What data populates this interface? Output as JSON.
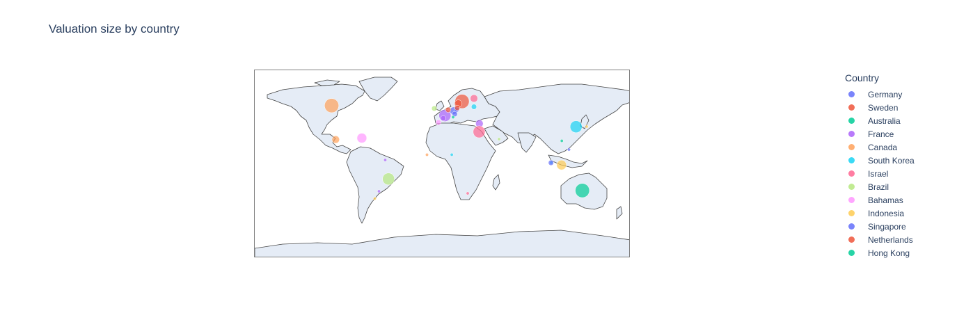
{
  "title": "Valuation size by country",
  "map": {
    "projection": "equirectangular",
    "land_color": "#e5ecf6",
    "coastline_color": "#444444",
    "frame_color": "#7f7f7f"
  },
  "legend": {
    "title": "Country",
    "items": [
      {
        "label": "Germany",
        "color": "#636efa"
      },
      {
        "label": "Sweden",
        "color": "#EF553B"
      },
      {
        "label": "Australia",
        "color": "#00cc96"
      },
      {
        "label": "France",
        "color": "#ab63fa"
      },
      {
        "label": "Canada",
        "color": "#FFA15A"
      },
      {
        "label": "South Korea",
        "color": "#19d3f3"
      },
      {
        "label": "Israel",
        "color": "#FF6692"
      },
      {
        "label": "Brazil",
        "color": "#B6E880"
      },
      {
        "label": "Bahamas",
        "color": "#FF97FF"
      },
      {
        "label": "Indonesia",
        "color": "#FECB52"
      },
      {
        "label": "Singapore",
        "color": "#636efa"
      },
      {
        "label": "Netherlands",
        "color": "#EF553B"
      },
      {
        "label": "Hong Kong",
        "color": "#00cc96"
      }
    ]
  },
  "chart_data": {
    "type": "scatter",
    "series": [
      {
        "name": "Germany",
        "color": "#636efa",
        "points": [
          {
            "lon": 10.4,
            "lat": 51.2,
            "size": 3
          },
          {
            "lon": 13.4,
            "lat": 52.5,
            "size": 2
          },
          {
            "lon": 11.6,
            "lat": 48.1,
            "size": 2
          }
        ]
      },
      {
        "name": "Sweden",
        "color": "#EF553B",
        "points": [
          {
            "lon": 18.6,
            "lat": 60.1,
            "size": 6
          },
          {
            "lon": 15.0,
            "lat": 58.0,
            "size": 3
          }
        ]
      },
      {
        "name": "Australia",
        "color": "#00cc96",
        "points": [
          {
            "lon": 133.8,
            "lat": -25.3,
            "size": 6
          }
        ]
      },
      {
        "name": "France",
        "color": "#ab63fa",
        "points": [
          {
            "lon": 2.2,
            "lat": 46.6,
            "size": 5
          },
          {
            "lon": 0.5,
            "lat": 44.0,
            "size": 2
          },
          {
            "lon": 35.2,
            "lat": 38.9,
            "size": 3
          },
          {
            "lon": -55.0,
            "lat": 4.0,
            "size": 1
          },
          {
            "lon": -61.0,
            "lat": -26.0,
            "size": 1
          }
        ]
      },
      {
        "name": "Canada",
        "color": "#FFA15A",
        "points": [
          {
            "lon": -106.3,
            "lat": 56.1,
            "size": 6
          },
          {
            "lon": -102.5,
            "lat": 23.6,
            "size": 3
          },
          {
            "lon": -15.0,
            "lat": 9.0,
            "size": 1
          }
        ]
      },
      {
        "name": "South Korea",
        "color": "#19d3f3",
        "points": [
          {
            "lon": 127.8,
            "lat": 35.9,
            "size": 5
          },
          {
            "lon": 104.0,
            "lat": 1.4,
            "size": 1
          },
          {
            "lon": 30.0,
            "lat": 55.0,
            "size": 2
          },
          {
            "lon": 8.7,
            "lat": 9.1,
            "size": 1
          }
        ]
      },
      {
        "name": "Israel",
        "color": "#FF6692",
        "points": [
          {
            "lon": 34.9,
            "lat": 31.0,
            "size": 5
          },
          {
            "lon": 30.0,
            "lat": 63.0,
            "size": 3
          },
          {
            "lon": 24.0,
            "lat": -28.0,
            "size": 1
          }
        ]
      },
      {
        "name": "Brazil",
        "color": "#B6E880",
        "points": [
          {
            "lon": -51.9,
            "lat": -14.2,
            "size": 5
          },
          {
            "lon": -8.0,
            "lat": 53.4,
            "size": 2
          },
          {
            "lon": 54.0,
            "lat": 24.0,
            "size": 1
          }
        ]
      },
      {
        "name": "Bahamas",
        "color": "#FF97FF",
        "points": [
          {
            "lon": -77.4,
            "lat": 25.0,
            "size": 4
          },
          {
            "lon": -4.0,
            "lat": 40.0,
            "size": 2
          }
        ]
      },
      {
        "name": "Indonesia",
        "color": "#FECB52",
        "points": [
          {
            "lon": 113.9,
            "lat": -0.8,
            "size": 4
          },
          {
            "lon": 138.0,
            "lat": 36.0,
            "size": 1
          },
          {
            "lon": -65.0,
            "lat": -33.0,
            "size": 1
          }
        ]
      },
      {
        "name": "Singapore",
        "color": "#636efa",
        "points": [
          {
            "lon": 103.8,
            "lat": 1.35,
            "size": 2
          },
          {
            "lon": 121.0,
            "lat": 14.0,
            "size": 1
          }
        ]
      },
      {
        "name": "Netherlands",
        "color": "#EF553B",
        "points": [
          {
            "lon": 5.3,
            "lat": 52.1,
            "size": 2
          },
          {
            "lon": 14.0,
            "lat": 54.0,
            "size": 2
          }
        ]
      },
      {
        "name": "Hong Kong",
        "color": "#00cc96",
        "points": [
          {
            "lon": 114.1,
            "lat": 22.3,
            "size": 1
          },
          {
            "lon": 10.0,
            "lat": 45.0,
            "size": 1
          }
        ]
      }
    ]
  }
}
